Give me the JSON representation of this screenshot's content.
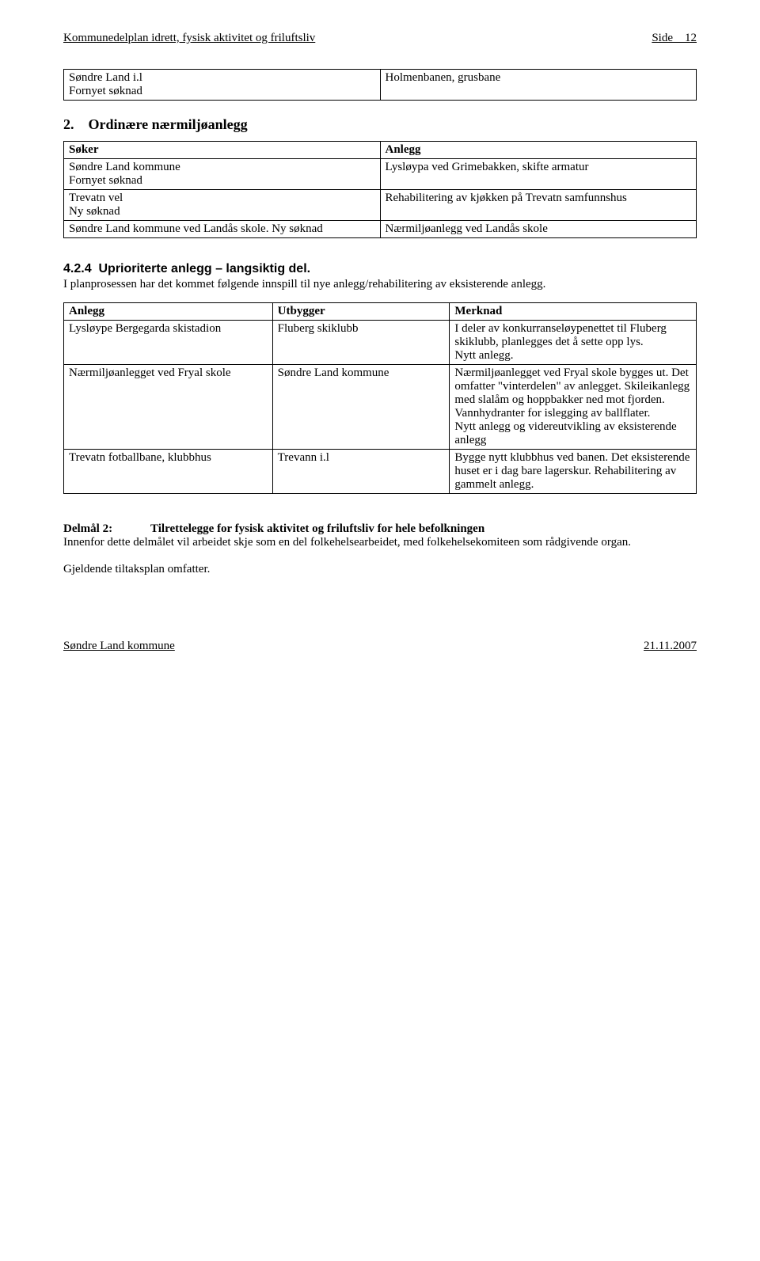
{
  "header": {
    "left": "Kommunedelplan idrett, fysisk aktivitet og friluftsliv",
    "right_label": "Side",
    "right_page": "12"
  },
  "table1": {
    "rows": [
      [
        "Søndre Land i.l\nFornyet søknad",
        "Holmenbanen, grusbane"
      ]
    ]
  },
  "section2": {
    "number": "2.",
    "title": "Ordinære nærmiljøanlegg"
  },
  "table2": {
    "header": [
      "Søker",
      "Anlegg"
    ],
    "rows": [
      [
        "Søndre Land kommune\nFornyet søknad",
        "Lysløypa ved Grimebakken, skifte armatur"
      ],
      [
        "Trevatn vel\nNy søknad",
        "Rehabilitering av kjøkken på Trevatn samfunnshus"
      ],
      [
        "Søndre Land kommune ved Landås skole. Ny søknad",
        "Nærmiljøanlegg ved Landås skole"
      ]
    ]
  },
  "subsection": {
    "num": "4.2.4",
    "title": "Uprioriterte anlegg – langsiktig del."
  },
  "subsection_text": "I planprosessen har det kommet følgende innspill til nye anlegg/rehabilitering av eksisterende anlegg.",
  "table3": {
    "header": [
      "Anlegg",
      "Utbygger",
      "Merknad"
    ],
    "rows": [
      [
        "Lysløype Bergegarda skistadion",
        "Fluberg skiklubb",
        "I deler av konkurranseløypenettet til Fluberg skiklubb, planlegges det å sette opp lys.\nNytt anlegg."
      ],
      [
        "Nærmiljøanlegget ved Fryal skole",
        "Søndre Land kommune",
        "Nærmiljøanlegget ved Fryal skole bygges ut. Det omfatter \"vinterdelen\" av anlegget. Skileikanlegg med slalåm og hoppbakker ned mot fjorden. Vannhydranter for islegging av ballflater.\nNytt anlegg og videreutvikling av eksisterende anlegg"
      ],
      [
        "Trevatn fotballbane, klubbhus",
        "Trevann i.l",
        "Bygge nytt klubbhus ved banen. Det eksisterende huset er i dag bare lagerskur. Rehabilitering av gammelt anlegg."
      ]
    ]
  },
  "delmal": {
    "label": "Delmål 2:",
    "title": "Tilrettelegge for fysisk aktivitet og friluftsliv for hele befolkningen",
    "body": "Innenfor dette delmålet vil arbeidet skje som en del folkehelsearbeidet, med folkehelsekomiteen som rådgivende organ.",
    "body2": "Gjeldende tiltaksplan omfatter."
  },
  "footer": {
    "left": "Søndre Land kommune",
    "right": "21.11.2007"
  }
}
